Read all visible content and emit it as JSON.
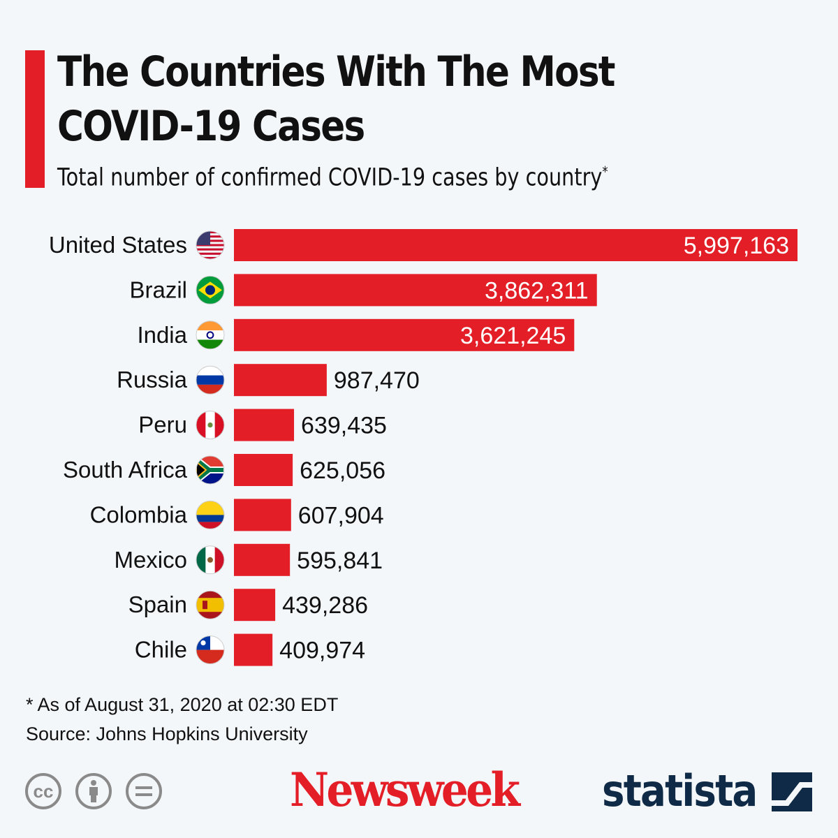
{
  "title_line1": "The Countries With The Most",
  "title_line2": "COVID-19 Cases",
  "subtitle": "Total number of confirmed COVID-19 cases by country",
  "subtitle_mark": "*",
  "footnote": "* As of August 31, 2020 at 02:30 EDT",
  "source": "Source: Johns Hopkins University",
  "brands": {
    "newsweek": "Newsweek",
    "statista": "statista"
  },
  "colors": {
    "bar": "#e31e26",
    "accent": "#e31e26",
    "statista": "#0f2a46"
  },
  "chart_data": {
    "type": "bar",
    "orientation": "horizontal",
    "title": "The Countries With The Most COVID-19 Cases",
    "xlabel": "",
    "ylabel": "",
    "categories": [
      "United States",
      "Brazil",
      "India",
      "Russia",
      "Peru",
      "South Africa",
      "Colombia",
      "Mexico",
      "Spain",
      "Chile"
    ],
    "values": [
      5997163,
      3862311,
      3621245,
      987470,
      639435,
      625056,
      607904,
      595841,
      439286,
      409974
    ],
    "labels": [
      "5,997,163",
      "3,862,311",
      "3,621,245",
      "987,470",
      "639,435",
      "625,056",
      "607,904",
      "595,841",
      "439,286",
      "409,974"
    ],
    "flags": [
      "us-flag-icon",
      "brazil-flag-icon",
      "india-flag-icon",
      "russia-flag-icon",
      "peru-flag-icon",
      "south-africa-flag-icon",
      "colombia-flag-icon",
      "mexico-flag-icon",
      "spain-flag-icon",
      "chile-flag-icon"
    ],
    "xlim": [
      0,
      5997163
    ],
    "grid": false
  }
}
